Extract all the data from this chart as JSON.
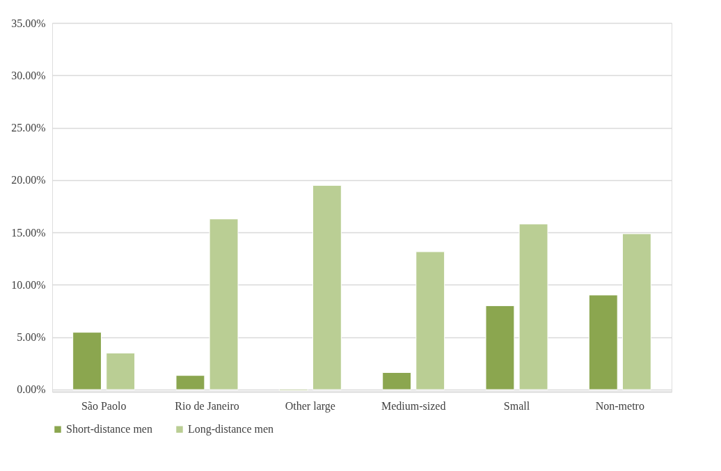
{
  "chart_data": {
    "type": "bar",
    "categories": [
      "São Paolo",
      "Rio de Janeiro",
      "Other large",
      "Medium-sized",
      "Small",
      "Non-metro"
    ],
    "series": [
      {
        "name": "Short-distance men",
        "color": "#8ba64f",
        "values": [
          5.47,
          1.35,
          -0.1,
          1.63,
          8.01,
          9.03
        ]
      },
      {
        "name": "Long-distance men",
        "color": "#bace94",
        "values": [
          3.49,
          16.29,
          19.49,
          13.16,
          15.81,
          14.88
        ]
      }
    ],
    "ylim": [
      -0.2,
      35
    ],
    "yticks": [
      {
        "value": 0,
        "label": "0.00%"
      },
      {
        "value": 5,
        "label": "5.00%"
      },
      {
        "value": 10,
        "label": "10.00%"
      },
      {
        "value": 15,
        "label": "15.00%"
      },
      {
        "value": 20,
        "label": "20.00%"
      },
      {
        "value": 25,
        "label": "25.00%"
      },
      {
        "value": 30,
        "label": "30.00%"
      },
      {
        "value": 35,
        "label": "35.00%"
      }
    ],
    "grid": "y",
    "legend": "bottom"
  }
}
